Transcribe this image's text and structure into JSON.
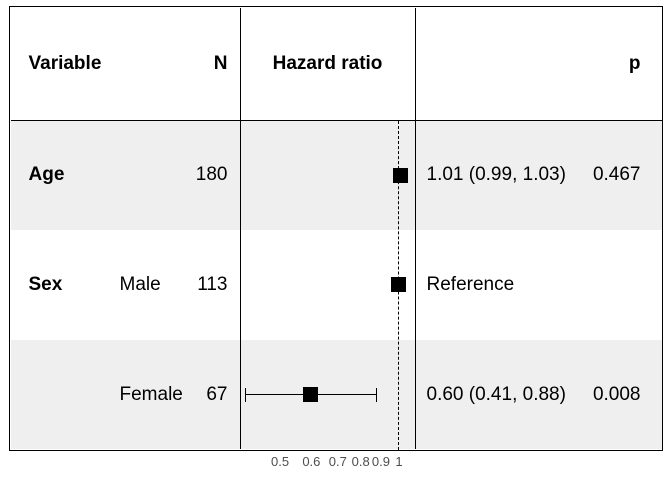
{
  "header": {
    "variable": "Variable",
    "n": "N",
    "hazard_ratio": "Hazard ratio",
    "p": "p"
  },
  "chart_data": {
    "type": "forest",
    "x_scale": "log10",
    "x_range_approx": [
      0.4,
      1.1
    ],
    "reference_line_x": 1,
    "x_axis_ticks": [
      {
        "label": "0.5",
        "value": 0.5
      },
      {
        "label": "0.6",
        "value": 0.6
      },
      {
        "label": "0.7",
        "value": 0.7
      },
      {
        "label": "0.8",
        "value": 0.8
      },
      {
        "label": "0.9",
        "value": 0.9
      },
      {
        "label": "1",
        "value": 1
      }
    ],
    "rows": [
      {
        "variable": "Age",
        "level": "",
        "n": "180",
        "hr": 1.01,
        "ci_low": 0.99,
        "ci_high": 1.03,
        "estimate_label": "1.01 (0.99, 1.03)",
        "p": "0.467",
        "shaded": true
      },
      {
        "variable": "Sex",
        "level": "Male",
        "n": "113",
        "hr": 1.0,
        "ci_low": null,
        "ci_high": null,
        "estimate_label": "Reference",
        "p": "",
        "shaded": false
      },
      {
        "variable": "",
        "level": "Female",
        "n": "67",
        "hr": 0.6,
        "ci_low": 0.41,
        "ci_high": 0.88,
        "estimate_label": "0.60 (0.41, 0.88)",
        "p": "0.008",
        "shaded": true
      }
    ]
  },
  "colors": {
    "row_band": "#EFEFEF",
    "marker": "#000000",
    "line": "#000000",
    "axis_text": "#4D4D4D",
    "background": "#FFFFFF"
  }
}
